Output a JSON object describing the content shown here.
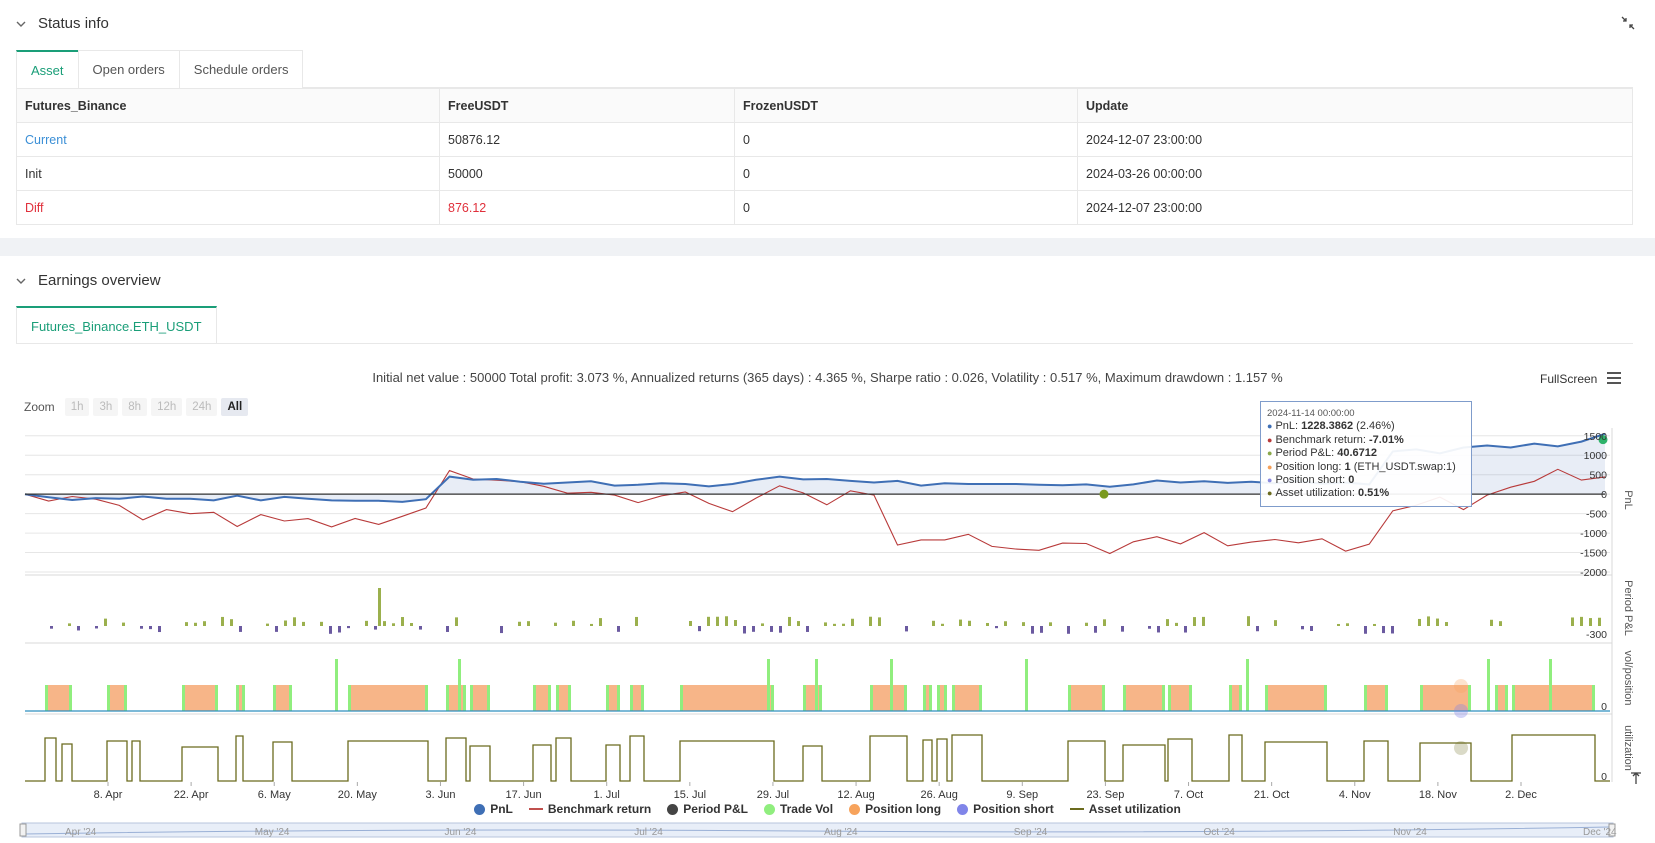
{
  "status": {
    "title": "Status info",
    "tabs": [
      "Asset",
      "Open orders",
      "Schedule orders"
    ],
    "table": {
      "headers": [
        "Futures_Binance",
        "FreeUSDT",
        "FrozenUSDT",
        "Update"
      ],
      "rows": [
        {
          "label": "Current",
          "free": "50876.12",
          "frozen": "0",
          "update": "2024-12-07 23:00:00"
        },
        {
          "label": "Init",
          "free": "50000",
          "frozen": "0",
          "update": "2024-03-26 00:00:00"
        },
        {
          "label": "Diff",
          "free": "876.12",
          "frozen": "0",
          "update": "2024-12-07 23:00:00"
        }
      ]
    }
  },
  "earnings": {
    "title": "Earnings overview",
    "tab": "Futures_Binance.ETH_USDT",
    "summary": "Initial net value : 50000 Total profit: 3.073 %, Annualized returns (365 days) : 4.365 %, Sharpe ratio : 0.026, Volatility : 0.517 %, Maximum drawdown : 1.157 %",
    "fullscreen": "FullScreen",
    "zoom": {
      "label": "Zoom",
      "options": [
        "1h",
        "3h",
        "8h",
        "12h",
        "24h",
        "All"
      ],
      "selected": "All"
    }
  },
  "tooltip": {
    "date": "2024-11-14 00:00:00",
    "lines": [
      {
        "label": "PnL: ",
        "value": "1228.3862",
        "extra": " (2.46%)",
        "color": "#3f6fb5"
      },
      {
        "label": "Benchmark return: ",
        "value": "-7.01%",
        "extra": "",
        "color": "#b83a3a"
      },
      {
        "label": "Period P&L: ",
        "value": "40.6712",
        "extra": "",
        "color": "#8aa84a"
      },
      {
        "label": "Position long: ",
        "value": "1",
        "extra": " (ETH_USDT.swap:1)",
        "color": "#f5a05a"
      },
      {
        "label": "Position short: ",
        "value": "0",
        "extra": "",
        "color": "#8a8ae0"
      },
      {
        "label": "Asset utilization: ",
        "value": "0.51%",
        "extra": "",
        "color": "#6b6b1e"
      }
    ]
  },
  "legend": [
    {
      "name": "PnL",
      "type": "dot",
      "color": "#3f6fb5"
    },
    {
      "name": "Benchmark return",
      "type": "line",
      "color": "#c0504d"
    },
    {
      "name": "Period P&L",
      "type": "dot",
      "color": "#444444"
    },
    {
      "name": "Trade Vol",
      "type": "dot",
      "color": "#90ee7e"
    },
    {
      "name": "Position long",
      "type": "dot",
      "color": "#f7a35c"
    },
    {
      "name": "Position short",
      "type": "dot",
      "color": "#8085e9"
    },
    {
      "name": "Asset utilization",
      "type": "line",
      "color": "#6b6b1e"
    }
  ],
  "chart_data": {
    "type": "line",
    "x_ticks": [
      "8. Apr",
      "22. Apr",
      "6. May",
      "20. May",
      "3. Jun",
      "17. Jun",
      "1. Jul",
      "15. Jul",
      "29. Jul",
      "12. Aug",
      "26. Aug",
      "9. Sep",
      "23. Sep",
      "7. Oct",
      "21. Oct",
      "4. Nov",
      "18. Nov",
      "2. Dec"
    ],
    "navigator_ticks": [
      "Apr '24",
      "May '24",
      "Jun '24",
      "Jul '24",
      "Aug '24",
      "Sep '24",
      "Oct '24",
      "Nov '24",
      "Dec '24"
    ],
    "pnl_axis": {
      "label": "PnL",
      "ticks": [
        "1500",
        "1000",
        "500",
        "0",
        "-500",
        "-1000",
        "-1500",
        "-2000"
      ],
      "ylim": [
        -2000,
        1700
      ]
    },
    "period_axis": {
      "label": "Period P&L",
      "ticks": [
        "-300"
      ]
    },
    "position_axis": {
      "label": "vol/position",
      "ticks": [
        "0"
      ]
    },
    "util_axis": {
      "label": "utilization",
      "ticks": [
        "0"
      ]
    },
    "series": [
      {
        "name": "PnL",
        "values": [
          0,
          -80,
          -150,
          -100,
          -120,
          -60,
          -120,
          -120,
          -160,
          -40,
          -160,
          -70,
          -120,
          -160,
          -170,
          -170,
          -200,
          -130,
          450,
          370,
          390,
          320,
          270,
          300,
          330,
          220,
          240,
          280,
          260,
          200,
          260,
          370,
          450,
          380,
          390,
          340,
          300,
          340,
          220,
          280,
          260,
          260,
          260,
          240,
          230,
          250,
          190,
          250,
          350,
          300,
          330,
          290,
          320,
          280,
          330,
          270,
          300,
          250,
          1100,
          1150,
          1050,
          1200,
          1250,
          1200,
          1300,
          1228,
          1350,
          1550
        ]
      },
      {
        "name": "Benchmark return",
        "values": [
          0,
          -100,
          -80,
          -200,
          -250,
          -600,
          -450,
          -550,
          -400,
          -800,
          -600,
          -700,
          -550,
          -850,
          -700,
          -750,
          -500,
          -400,
          550,
          450,
          400,
          250,
          180,
          100,
          50,
          -100,
          -200,
          30,
          20,
          -300,
          -400,
          -50,
          150,
          0,
          -200,
          100,
          -100,
          -1300,
          -1100,
          -1200,
          -1100,
          -1300,
          -1350,
          -1500,
          -1300,
          -1200,
          -1500,
          -1300,
          -1100,
          -1200,
          -1000,
          -1400,
          -1200,
          -1100,
          -1300,
          -1200,
          -1400,
          -1250,
          -500,
          -300,
          0,
          -400,
          -100,
          200,
          400,
          600,
          300,
          500
        ]
      }
    ],
    "markers": [
      {
        "series": "PnL",
        "x": "13. Sep",
        "value": 0,
        "color": "#7a9a1e"
      },
      {
        "series": "PnL",
        "x": "7. Dec",
        "value": 1400,
        "color": "#2fb36b"
      }
    ]
  }
}
